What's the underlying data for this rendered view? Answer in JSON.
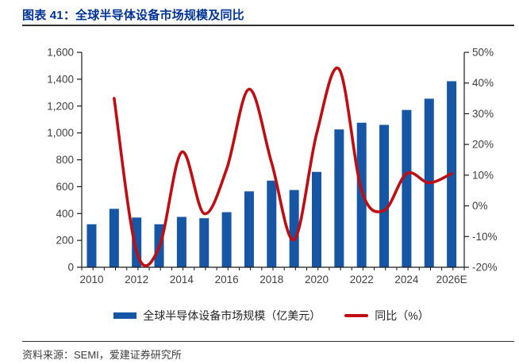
{
  "header": {
    "title": "图表 41：全球半导体设备市场规模及同比"
  },
  "footer": {
    "source": "资料来源：SEMI，爱建证券研究所"
  },
  "legend": {
    "bar_label": "全球半导体设备市场规模（亿美元）",
    "line_label": "同比（%）"
  },
  "colors": {
    "bar": "#1656A5",
    "line": "#C00D12",
    "title": "#003399",
    "axis": "#1a1a1a",
    "tick_label": "#404040",
    "rule": "#303030"
  },
  "chart_data": {
    "type": "bar",
    "subtype": "bar+smooth-line, dual axis",
    "title": "全球半导体设备市场规模及同比",
    "categories": [
      "2010",
      "2011",
      "2012",
      "2013",
      "2014",
      "2015",
      "2016",
      "2017",
      "2018",
      "2019",
      "2020",
      "2021",
      "2022",
      "2023",
      "2024",
      "2025",
      "2026E"
    ],
    "series": [
      {
        "name": "全球半导体设备市场规模（亿美元）",
        "type": "bar",
        "axis": "left",
        "values": [
          320,
          435,
          370,
          320,
          375,
          365,
          410,
          565,
          645,
          575,
          710,
          1026,
          1076,
          1060,
          1171,
          1255,
          1385
        ]
      },
      {
        "name": "同比（%）",
        "type": "line",
        "axis": "right",
        "values": [
          null,
          35,
          -15,
          -13.5,
          17.5,
          -2.5,
          12,
          38,
          14,
          -11,
          23.5,
          44.5,
          5,
          -1.5,
          10.5,
          7.5,
          10.5
        ]
      }
    ],
    "left_axis": {
      "label": "",
      "min": 0,
      "max": 1600,
      "step": 200,
      "tick_labels": [
        "0",
        "200",
        "400",
        "600",
        "800",
        "1,000",
        "1,200",
        "1,400",
        "1,600"
      ]
    },
    "right_axis": {
      "label": "",
      "min": -20,
      "max": 50,
      "step": 10,
      "tick_labels": [
        "-20%",
        "-10%",
        "0%",
        "10%",
        "20%",
        "30%",
        "40%",
        "50%"
      ]
    },
    "x_tick_labels": [
      "2010",
      "2012",
      "2014",
      "2016",
      "2018",
      "2020",
      "2022",
      "2024",
      "2026E"
    ],
    "grid": false,
    "legend_position": "bottom"
  }
}
